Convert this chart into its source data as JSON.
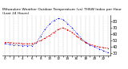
{
  "title": "Milwaukee Weather Outdoor Temperature (vs) THSW Index per Hour (Last 24 Hours)",
  "hours": [
    0,
    1,
    2,
    3,
    4,
    5,
    6,
    7,
    8,
    9,
    10,
    11,
    12,
    13,
    14,
    15,
    16,
    17,
    18,
    19,
    20,
    21,
    22,
    23
  ],
  "temp": [
    47,
    47,
    46,
    46,
    45,
    45,
    45,
    47,
    50,
    54,
    58,
    63,
    68,
    70,
    67,
    63,
    57,
    52,
    47,
    44,
    42,
    40,
    39,
    38
  ],
  "thsw": [
    45,
    44,
    43,
    43,
    42,
    42,
    42,
    46,
    57,
    68,
    76,
    82,
    85,
    83,
    77,
    70,
    62,
    54,
    48,
    43,
    40,
    37,
    34,
    31
  ],
  "temp_color": "#dd0000",
  "thsw_color": "#0000dd",
  "bg_color": "#ffffff",
  "grid_color": "#888888",
  "ylim_min": 27,
  "ylim_max": 90,
  "ytick_values": [
    30,
    40,
    50,
    60,
    70,
    80
  ],
  "ytick_labels": [
    "30",
    "40",
    "50",
    "60",
    "70",
    "80"
  ],
  "ylabel_fontsize": 3.5,
  "title_fontsize": 3.2,
  "xtick_fontsize": 3.0
}
